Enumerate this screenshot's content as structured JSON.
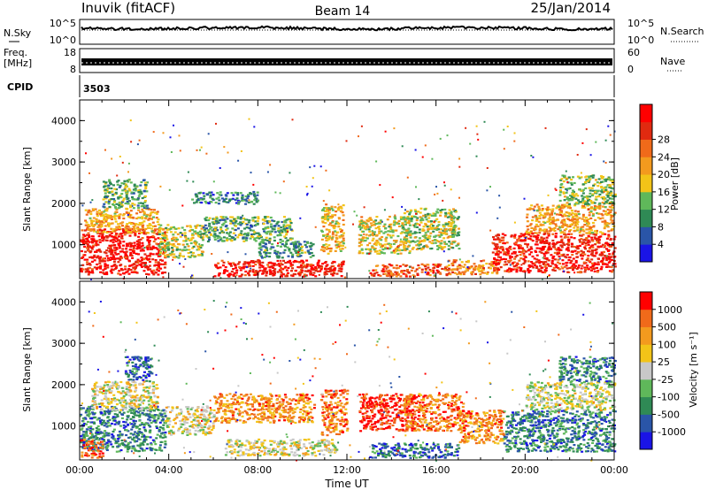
{
  "header": {
    "station": "Inuvik (fitACF)",
    "beam": "Beam 14",
    "date": "25/Jan/2014"
  },
  "noise_panel": {
    "left_label": "N.Sky",
    "right_label": "N.Search",
    "left_ticks": [
      "10^5",
      "10^0"
    ],
    "right_ticks": [
      "10^5",
      "10^0"
    ]
  },
  "freq_panel": {
    "left_label_line1": "Freq.",
    "left_label_line2": "[MHz]",
    "right_label": "Nave",
    "left_ticks": [
      "18",
      "8"
    ],
    "right_ticks": [
      "60",
      "0"
    ]
  },
  "cpid_panel": {
    "label": "CPID",
    "value": "3503"
  },
  "chart_data": [
    {
      "type": "heatmap",
      "name": "power",
      "ylabel": "Slant Range [km]",
      "ylim": [
        180,
        4500
      ],
      "xlim": [
        "00:00",
        "24:00"
      ],
      "yticks": [
        "1000",
        "2000",
        "3000",
        "4000"
      ],
      "colorbar_label": "Power [dB]",
      "colorbar_ticks": [
        "4",
        "8",
        "12",
        "16",
        "20",
        "24",
        "28"
      ],
      "colorbar_colors": [
        "#1a14e6",
        "#2a55a8",
        "#2f8a55",
        "#5fb85a",
        "#f2c418",
        "#f39a1e",
        "#f06a1a",
        "#e02a10",
        "#ff0000"
      ],
      "regions": [
        {
          "t0": 0.0,
          "t1": 3.8,
          "r0": 300,
          "r1": 1400,
          "level": 0.92
        },
        {
          "t0": 0.2,
          "t1": 3.5,
          "r0": 1300,
          "r1": 1900,
          "level": 0.6
        },
        {
          "t0": 1.0,
          "t1": 3.0,
          "r0": 1900,
          "r1": 2600,
          "level": 0.35
        },
        {
          "t0": 3.5,
          "t1": 5.5,
          "r0": 700,
          "r1": 1500,
          "level": 0.45
        },
        {
          "t0": 5.5,
          "t1": 9.5,
          "r0": 1100,
          "r1": 1700,
          "level": 0.35
        },
        {
          "t0": 5.0,
          "t1": 8.0,
          "r0": 2000,
          "r1": 2300,
          "level": 0.25
        },
        {
          "t0": 6.0,
          "t1": 11.8,
          "r0": 250,
          "r1": 650,
          "level": 0.9
        },
        {
          "t0": 8.0,
          "t1": 10.5,
          "r0": 700,
          "r1": 1100,
          "level": 0.3
        },
        {
          "t0": 10.8,
          "t1": 11.8,
          "r0": 800,
          "r1": 2000,
          "level": 0.55
        },
        {
          "t0": 12.5,
          "t1": 14.8,
          "r0": 800,
          "r1": 1700,
          "level": 0.5
        },
        {
          "t0": 13.0,
          "t1": 16.5,
          "r0": 250,
          "r1": 550,
          "level": 0.8
        },
        {
          "t0": 14.5,
          "t1": 17.0,
          "r0": 900,
          "r1": 1900,
          "level": 0.45
        },
        {
          "t0": 16.5,
          "t1": 18.8,
          "r0": 300,
          "r1": 650,
          "level": 0.65
        },
        {
          "t0": 18.5,
          "t1": 24.0,
          "r0": 350,
          "r1": 1300,
          "level": 0.9
        },
        {
          "t0": 20.0,
          "t1": 24.0,
          "r0": 1300,
          "r1": 2000,
          "level": 0.6
        },
        {
          "t0": 21.5,
          "t1": 24.0,
          "r0": 2000,
          "r1": 2700,
          "level": 0.4
        }
      ]
    },
    {
      "type": "heatmap",
      "name": "velocity",
      "ylabel": "Slant Range [km]",
      "xlabel": "Time UT",
      "ylim": [
        180,
        4500
      ],
      "xlim": [
        "00:00",
        "24:00"
      ],
      "yticks": [
        "1000",
        "2000",
        "3000",
        "4000"
      ],
      "xticks": [
        "00:00",
        "04:00",
        "08:00",
        "12:00",
        "16:00",
        "20:00",
        "00:00"
      ],
      "colorbar_label": "Velocity [m s⁻¹]",
      "colorbar_ticks": [
        "1000",
        "500",
        "100",
        "25",
        "-25",
        "-100",
        "-500",
        "-1000"
      ],
      "colorbar_colors": [
        "#1a14e6",
        "#2a55a8",
        "#2f8a55",
        "#5fb85a",
        "#c8c8c8",
        "#f2c418",
        "#f39a1e",
        "#f06a1a",
        "#ff0000"
      ],
      "regions": [
        {
          "t0": 0.0,
          "t1": 3.8,
          "r0": 400,
          "r1": 1500,
          "level": 0.25
        },
        {
          "t0": 0.5,
          "t1": 3.5,
          "r0": 1400,
          "r1": 2100,
          "level": 0.55
        },
        {
          "t0": 2.0,
          "t1": 3.2,
          "r0": 2100,
          "r1": 2700,
          "level": 0.2
        },
        {
          "t0": 0.0,
          "t1": 1.0,
          "r0": 250,
          "r1": 700,
          "level": 0.85
        },
        {
          "t0": 3.8,
          "t1": 6.0,
          "r0": 800,
          "r1": 1500,
          "level": 0.55
        },
        {
          "t0": 6.0,
          "t1": 10.5,
          "r0": 1100,
          "r1": 1800,
          "level": 0.75
        },
        {
          "t0": 6.5,
          "t1": 11.5,
          "r0": 300,
          "r1": 700,
          "level": 0.55
        },
        {
          "t0": 10.8,
          "t1": 12.0,
          "r0": 800,
          "r1": 1900,
          "level": 0.8
        },
        {
          "t0": 12.5,
          "t1": 15.0,
          "r0": 900,
          "r1": 1800,
          "level": 0.95
        },
        {
          "t0": 14.5,
          "t1": 17.2,
          "r0": 900,
          "r1": 1800,
          "level": 0.8
        },
        {
          "t0": 13.0,
          "t1": 17.0,
          "r0": 250,
          "r1": 600,
          "level": 0.2
        },
        {
          "t0": 17.0,
          "t1": 19.0,
          "r0": 600,
          "r1": 1400,
          "level": 0.75
        },
        {
          "t0": 19.0,
          "t1": 24.0,
          "r0": 400,
          "r1": 1400,
          "level": 0.25
        },
        {
          "t0": 20.0,
          "t1": 24.0,
          "r0": 1400,
          "r1": 2100,
          "level": 0.5
        },
        {
          "t0": 21.5,
          "t1": 24.0,
          "r0": 2100,
          "r1": 2700,
          "level": 0.25
        }
      ]
    }
  ]
}
